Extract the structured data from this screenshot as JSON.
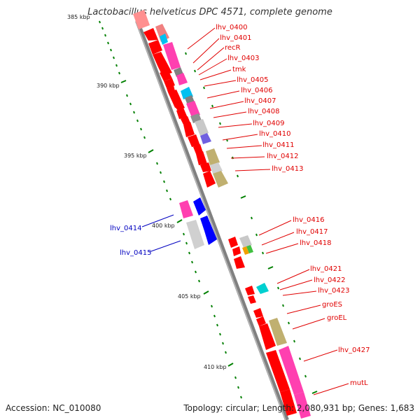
{
  "title": "Lactobacillus helveticus DPC 4571, complete genome",
  "accession": "Accession: NC_010080",
  "topology": "Topology: circular; Length: 2,080,931 bp; Genes: 1,683",
  "colors": {
    "gene_red": "#ff0000",
    "label_red": "#e00000",
    "label_blue": "#0000c0",
    "tick_green": "#008000",
    "backbone": "#808080"
  },
  "scale_labels": [
    "385 kbp",
    "390 kbp",
    "395 kbp",
    "400 kbp",
    "405 kbp",
    "410 kbp"
  ],
  "gene_labels_right": [
    "lhv_0400",
    "lhv_0401",
    "recR",
    "lhv_0403",
    "tmk",
    "lhv_0405",
    "lhv_0406",
    "lhv_0407",
    "lhv_0408",
    "lhv_0409",
    "lhv_0410",
    "lhv_0411",
    "lhv_0412",
    "lhv_0413",
    "lhv_0416",
    "lhv_0417",
    "lhv_0418",
    "lhv_0421",
    "lhv_0422",
    "lhv_0423",
    "groES",
    "groEL",
    "lhv_0427",
    "mutL"
  ],
  "gene_labels_left": [
    "lhv_0414",
    "lhv_0415"
  ]
}
